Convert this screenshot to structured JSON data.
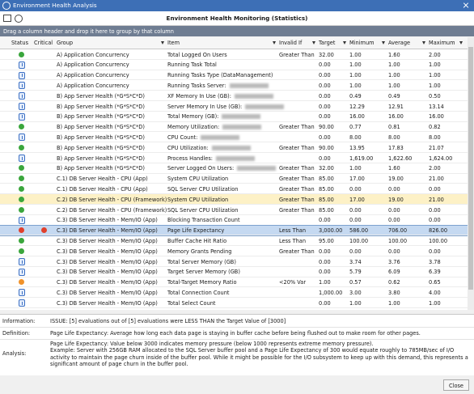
{
  "window": {
    "title": "Environment Health Analysis"
  },
  "header": {
    "title": "Environment Health Monitoring (Statistics)"
  },
  "group_panel": {
    "hint": "Drag a column header and drop it here to group by that column"
  },
  "table": {
    "columns": [
      "Status",
      "Critical",
      "Group",
      "Item",
      "Invalid If",
      "Target",
      "Minimum",
      "Average",
      "Maximum"
    ],
    "rows": [
      {
        "status": "green",
        "group": "A) Application Concurrency",
        "item": "Total Logged On Users",
        "invalid_if": "Greater Than",
        "target": "32.00",
        "minimum": "1.00",
        "average": "1.60",
        "maximum": "2.00"
      },
      {
        "status": "info",
        "group": "A) Application Concurrency",
        "item": "Running Task Total",
        "target": "0.00",
        "minimum": "1.00",
        "average": "1.00",
        "maximum": "1.00"
      },
      {
        "status": "info",
        "group": "A) Application Concurrency",
        "item": "Running Tasks Type (DataManagement)",
        "target": "0.00",
        "minimum": "1.00",
        "average": "1.00",
        "maximum": "1.00"
      },
      {
        "status": "info",
        "group": "A) Application Concurrency",
        "item": "Running Tasks Server:",
        "redacted": true,
        "target": "0.00",
        "minimum": "1.00",
        "average": "1.00",
        "maximum": "1.00"
      },
      {
        "status": "info",
        "group": "B) App Server Health (*G*S*C*D)",
        "item": "XF Memory In Use (GB):",
        "redacted": true,
        "target": "0.00",
        "minimum": "0.49",
        "average": "0.49",
        "maximum": "0.50"
      },
      {
        "status": "info",
        "group": "B) App Server Health (*G*S*C*D)",
        "item": "Server Memory In Use (GB):",
        "redacted": true,
        "target": "0.00",
        "minimum": "12.29",
        "average": "12.91",
        "maximum": "13.14"
      },
      {
        "status": "info",
        "group": "B) App Server Health (*G*S*C*D)",
        "item": "Total Memory (GB):",
        "redacted": true,
        "target": "0.00",
        "minimum": "16.00",
        "average": "16.00",
        "maximum": "16.00"
      },
      {
        "status": "green",
        "group": "B) App Server Health (*G*S*C*D)",
        "item": "Memory Utilization:",
        "redacted": true,
        "invalid_if": "Greater Than",
        "target": "90.00",
        "minimum": "0.77",
        "average": "0.81",
        "maximum": "0.82"
      },
      {
        "status": "info",
        "group": "B) App Server Health (*G*S*C*D)",
        "item": "CPU Count:",
        "redacted": true,
        "target": "0.00",
        "minimum": "8.00",
        "average": "8.00",
        "maximum": "8.00"
      },
      {
        "status": "green",
        "group": "B) App Server Health (*G*S*C*D)",
        "item": "CPU Utilization:",
        "redacted": true,
        "invalid_if": "Greater Than",
        "target": "90.00",
        "minimum": "13.95",
        "average": "17.83",
        "maximum": "21.07"
      },
      {
        "status": "info",
        "group": "B) App Server Health (*G*S*C*D)",
        "item": "Process Handles:",
        "redacted": true,
        "target": "0.00",
        "minimum": "1,619.00",
        "average": "1,622.60",
        "maximum": "1,624.00"
      },
      {
        "status": "green",
        "group": "B) App Server Health (*G*S*C*D)",
        "item": "Server Logged On Users:",
        "redacted": true,
        "invalid_if": "Greater Than",
        "target": "32.00",
        "minimum": "1.00",
        "average": "1.60",
        "maximum": "2.00"
      },
      {
        "status": "green",
        "group": "C.1) DB Server Health - CPU (App)",
        "item": "System CPU Utilization",
        "invalid_if": "Greater Than",
        "target": "85.00",
        "minimum": "17.00",
        "average": "19.00",
        "maximum": "21.00"
      },
      {
        "status": "green",
        "group": "C.1) DB Server Health - CPU (App)",
        "item": "SQL Server CPU Utilization",
        "invalid_if": "Greater Than",
        "target": "85.00",
        "minimum": "0.00",
        "average": "0.00",
        "maximum": "0.00"
      },
      {
        "status": "green",
        "group": "C.2) DB Server Health - CPU (Framework)",
        "item": "System CPU Utilization",
        "invalid_if": "Greater Than",
        "target": "85.00",
        "minimum": "17.00",
        "average": "19.00",
        "maximum": "21.00"
      },
      {
        "status": "green",
        "group": "C.2) DB Server Health - CPU (Framework)",
        "item": "SQL Server CPU Utilization",
        "invalid_if": "Greater Than",
        "target": "85.00",
        "minimum": "0.00",
        "average": "0.00",
        "maximum": "0.00"
      },
      {
        "status": "info",
        "group": "C.3) DB Server Health - Mem/IO (App)",
        "item": "Blocking Transaction Count",
        "target": "0.00",
        "minimum": "0.00",
        "average": "0.00",
        "maximum": "0.00"
      },
      {
        "status": "red",
        "critical": "red",
        "group": "C.3) DB Server Health - Mem/IO (App)",
        "item": "Page Life Expectancy",
        "invalid_if": "Less Than",
        "target": "3,000.00",
        "minimum": "586.00",
        "average": "706.00",
        "maximum": "826.00"
      },
      {
        "status": "green",
        "group": "C.3) DB Server Health - Mem/IO (App)",
        "item": "Buffer Cache Hit Ratio",
        "invalid_if": "Less Than",
        "target": "95.00",
        "minimum": "100.00",
        "average": "100.00",
        "maximum": "100.00"
      },
      {
        "status": "green",
        "group": "C.3) DB Server Health - Mem/IO (App)",
        "item": "Memory Grants Pending",
        "invalid_if": "Greater Than",
        "target": "0.00",
        "minimum": "0.00",
        "average": "0.00",
        "maximum": "0.00"
      },
      {
        "status": "info",
        "group": "C.3) DB Server Health - Mem/IO (App)",
        "item": "Total Server Memory (GB)",
        "target": "0.00",
        "minimum": "3.74",
        "average": "3.76",
        "maximum": "3.78"
      },
      {
        "status": "info",
        "group": "C.3) DB Server Health - Mem/IO (App)",
        "item": "Target Server Memory (GB)",
        "target": "0.00",
        "minimum": "5.79",
        "average": "6.09",
        "maximum": "6.39"
      },
      {
        "status": "orange",
        "group": "C.3) DB Server Health - Mem/IO (App)",
        "item": "Total-Target Memory Ratio",
        "invalid_if": "<20% Var",
        "target": "1.00",
        "minimum": "0.57",
        "average": "0.62",
        "maximum": "0.65"
      },
      {
        "status": "info",
        "group": "C.3) DB Server Health - Mem/IO (App)",
        "item": "Total Connection Count",
        "target": "1,000.00",
        "minimum": "3.00",
        "average": "3.80",
        "maximum": "4.00"
      },
      {
        "status": "info",
        "group": "C.3) DB Server Health - Mem/IO (App)",
        "item": "Total Select Count",
        "target": "0.00",
        "minimum": "1.00",
        "average": "1.00",
        "maximum": "1.00"
      }
    ]
  },
  "details": {
    "information": {
      "label": "Information:",
      "text": "ISSUE: [5] evaluations out of [5] evaluations were LESS THAN the Target Value of [3000]"
    },
    "definition": {
      "label": "Definition:",
      "text": "Page Life Expectancy:  Average how long each data page is staying in buffer cache before being flushed out to make room for other pages."
    },
    "analysis": {
      "label": "Analysis:",
      "lines": [
        "Page Life Expectancy:  Value below 3000 indicates memory pressure (below 1000 represents extreme memory pressure).",
        "Example: Server with 256GB RAM allocated to the SQL Server buffer pool and a Page Life Expectancy of 300 would equate roughly to 785MB/sec of I/O activity to maintain the page churn inside of the buffer pool. While it might be possible for the I/O subsystem to keep up with this demand, this represents a significant amount of page churn in the buffer pool."
      ]
    }
  },
  "buttons": {
    "close": "Close"
  }
}
